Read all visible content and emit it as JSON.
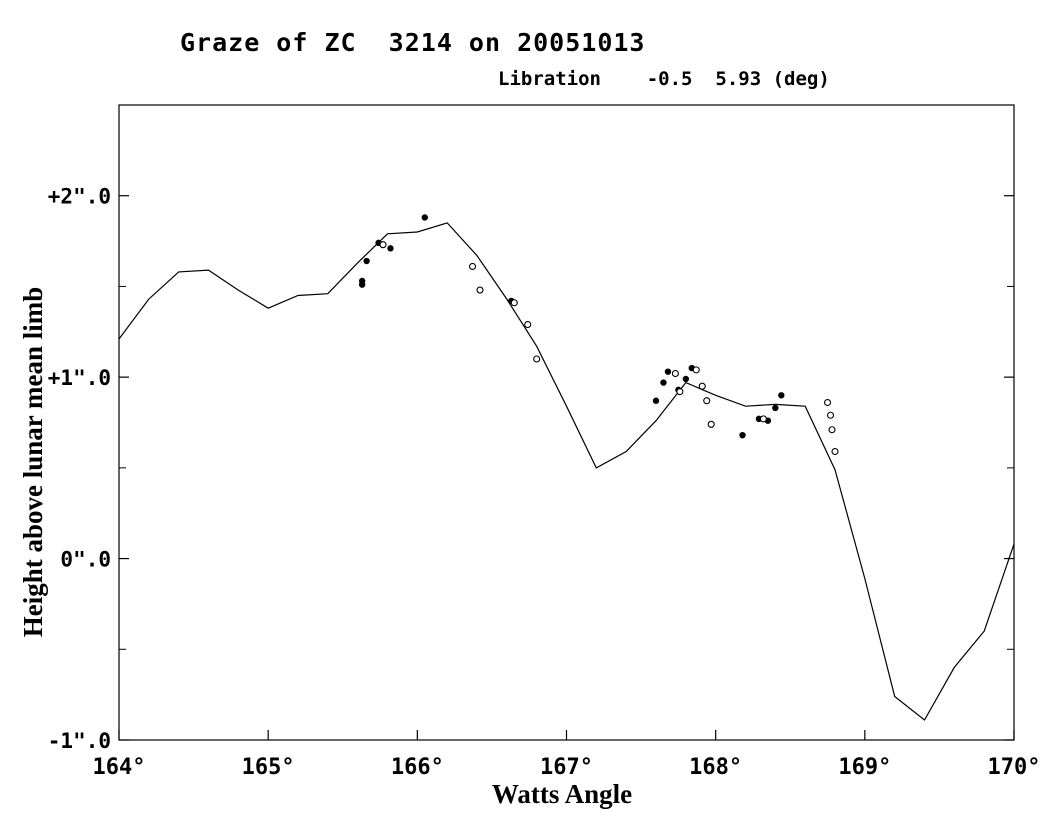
{
  "chart_data": {
    "type": "line",
    "title": "Graze of ZC  3214 on 20051013",
    "libration": {
      "label": "Libration",
      "values": [
        "-0.5",
        "5.93"
      ],
      "unit": "(deg)"
    },
    "xlabel": "Watts Angle",
    "ylabel": "Height above lunar mean limb",
    "xlim": [
      164,
      170
    ],
    "ylim": [
      -1.0,
      2.5
    ],
    "x_ticks": [
      {
        "value": 164,
        "label": "164°"
      },
      {
        "value": 165,
        "label": "165°"
      },
      {
        "value": 166,
        "label": "166°"
      },
      {
        "value": 167,
        "label": "167°"
      },
      {
        "value": 168,
        "label": "168°"
      },
      {
        "value": 169,
        "label": "169°"
      },
      {
        "value": 170,
        "label": "170°"
      }
    ],
    "y_ticks": [
      {
        "value": 2.0,
        "label": "+2\".0"
      },
      {
        "value": 1.0,
        "label": "+1\".0"
      },
      {
        "value": 0.0,
        "label": "0\".0"
      },
      {
        "value": -1.0,
        "label": "-1\".0"
      }
    ],
    "y_minor": [
      -0.5,
      0.5,
      1.5
    ],
    "grid": false,
    "profile": [
      [
        164.0,
        1.21
      ],
      [
        164.2,
        1.43
      ],
      [
        164.4,
        1.58
      ],
      [
        164.6,
        1.59
      ],
      [
        164.8,
        1.48
      ],
      [
        165.0,
        1.38
      ],
      [
        165.2,
        1.45
      ],
      [
        165.4,
        1.46
      ],
      [
        165.6,
        1.63
      ],
      [
        165.8,
        1.79
      ],
      [
        166.0,
        1.8
      ],
      [
        166.2,
        1.85
      ],
      [
        166.4,
        1.67
      ],
      [
        166.6,
        1.43
      ],
      [
        166.8,
        1.17
      ],
      [
        167.0,
        0.84
      ],
      [
        167.2,
        0.5
      ],
      [
        167.4,
        0.59
      ],
      [
        167.6,
        0.76
      ],
      [
        167.8,
        0.97
      ],
      [
        168.0,
        0.9
      ],
      [
        168.2,
        0.84
      ],
      [
        168.4,
        0.85
      ],
      [
        168.6,
        0.84
      ],
      [
        168.8,
        0.49
      ],
      [
        169.0,
        -0.11
      ],
      [
        169.2,
        -0.76
      ],
      [
        169.4,
        -0.89
      ],
      [
        169.6,
        -0.6
      ],
      [
        169.8,
        -0.4
      ],
      [
        170.0,
        0.08
      ]
    ],
    "profile_gaps": [
      [
        164.15,
        164.32
      ]
    ],
    "series": [
      {
        "marker": "filled-dot",
        "points": [
          [
            165.63,
            1.51
          ],
          [
            165.63,
            1.53
          ],
          [
            165.66,
            1.64
          ],
          [
            165.74,
            1.74
          ],
          [
            165.82,
            1.71
          ],
          [
            166.05,
            1.88
          ],
          [
            166.63,
            1.42
          ],
          [
            167.6,
            0.87
          ],
          [
            167.65,
            0.97
          ],
          [
            167.68,
            1.03
          ],
          [
            167.75,
            0.93
          ],
          [
            167.8,
            0.99
          ],
          [
            167.84,
            1.05
          ],
          [
            168.18,
            0.68
          ],
          [
            168.29,
            0.77
          ],
          [
            168.35,
            0.76
          ],
          [
            168.4,
            0.83
          ],
          [
            168.44,
            0.9
          ]
        ]
      },
      {
        "marker": "open-circle",
        "points": [
          [
            165.77,
            1.73
          ],
          [
            166.37,
            1.61
          ],
          [
            166.42,
            1.48
          ],
          [
            166.65,
            1.41
          ],
          [
            166.74,
            1.29
          ],
          [
            166.8,
            1.1
          ],
          [
            167.73,
            1.02
          ],
          [
            167.76,
            0.92
          ],
          [
            167.87,
            1.04
          ],
          [
            167.91,
            0.95
          ],
          [
            167.94,
            0.87
          ],
          [
            167.97,
            0.74
          ],
          [
            168.32,
            0.77
          ],
          [
            168.75,
            0.86
          ],
          [
            168.77,
            0.79
          ],
          [
            168.78,
            0.71
          ],
          [
            168.8,
            0.59
          ]
        ]
      }
    ]
  }
}
